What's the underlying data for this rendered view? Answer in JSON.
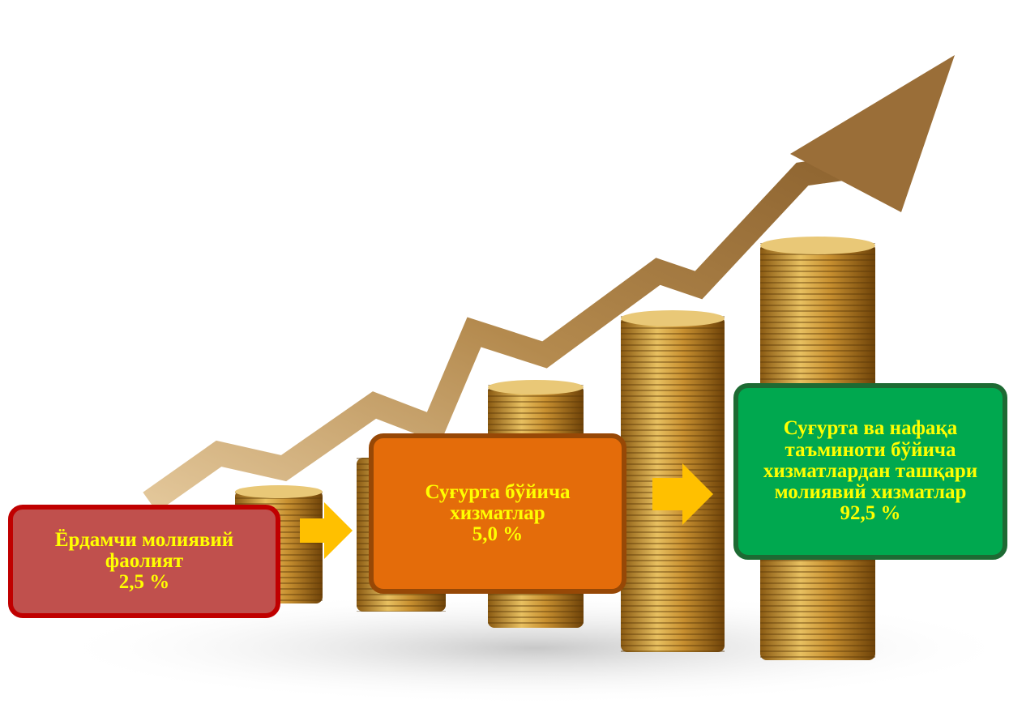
{
  "boxes": [
    {
      "label": "Ёрдамчи молиявий фаолият",
      "value": "2,5 %"
    },
    {
      "label": "Суғурта бўйича хизматлар",
      "value": "5,0 %"
    },
    {
      "label": "Суғурта ва нафақа таъминоти бўйича хизматлардан ташқари молиявий хизматлар",
      "value": "92,5 %"
    }
  ]
}
